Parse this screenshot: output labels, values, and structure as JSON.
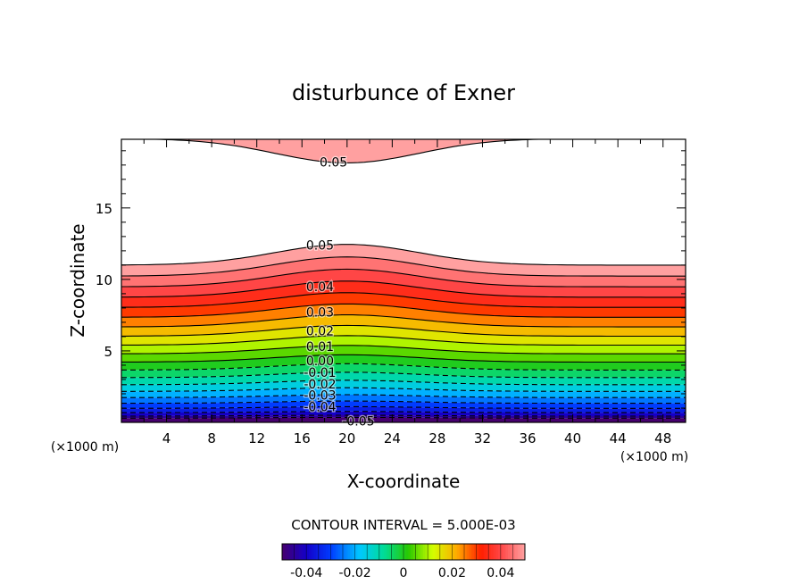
{
  "chart_data": {
    "type": "contour",
    "title": "disturbunce of Exner",
    "xlabel": "X-coordinate",
    "ylabel": "Z-coordinate",
    "x_unit": "(×1000 m)",
    "y_unit": "(×1000 m)",
    "xlim": [
      0,
      50
    ],
    "ylim": [
      0,
      19.8
    ],
    "x_ticks": [
      4,
      8,
      12,
      16,
      20,
      24,
      28,
      32,
      36,
      40,
      44,
      48
    ],
    "y_ticks": [
      5,
      10,
      15
    ],
    "contour_interval_label": "CONTOUR INTERVAL = 5.000E-03",
    "contour_interval": 0.005,
    "value_range": [
      -0.05,
      0.05
    ],
    "contour_labels": [
      {
        "text": "0.05",
        "x": 18.8,
        "z": 18.2
      },
      {
        "text": "0.05",
        "x": 17.6,
        "z": 12.4
      },
      {
        "text": "0.04",
        "x": 17.6,
        "z": 9.5
      },
      {
        "text": "0.03",
        "x": 17.6,
        "z": 7.7
      },
      {
        "text": "0.02",
        "x": 17.6,
        "z": 6.4
      },
      {
        "text": "0.01",
        "x": 17.6,
        "z": 5.3
      },
      {
        "text": "0.00",
        "x": 17.6,
        "z": 4.3
      },
      {
        "text": "-0.01",
        "x": 17.6,
        "z": 3.5
      },
      {
        "text": "-0.02",
        "x": 17.6,
        "z": 2.7
      },
      {
        "text": "-0.03",
        "x": 17.6,
        "z": 1.9
      },
      {
        "text": "-0.04",
        "x": 17.6,
        "z": 1.1
      },
      {
        "text": "-0.05",
        "x": 21.0,
        "z": 0.1
      }
    ],
    "colorbar": {
      "ticks": [
        -0.04,
        -0.02,
        0,
        0.02,
        0.04
      ],
      "tick_labels": [
        "-0.04",
        "-0.02",
        "0",
        "0.02",
        "0.04"
      ]
    }
  }
}
